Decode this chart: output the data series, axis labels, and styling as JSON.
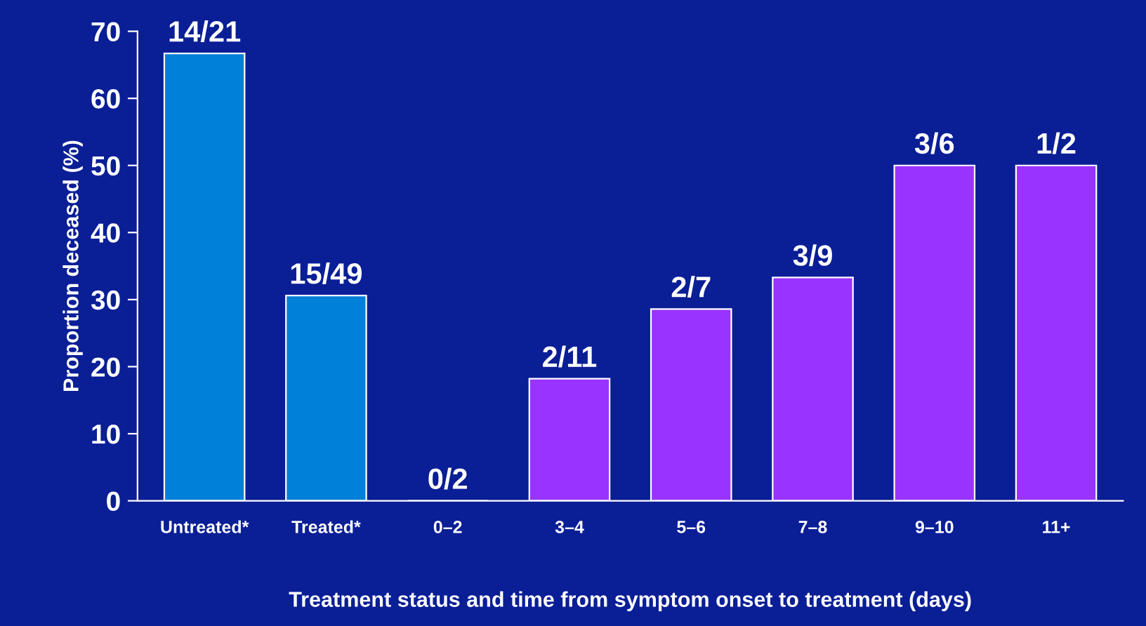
{
  "chart_data": {
    "type": "bar",
    "xlabel": "Treatment status and time from symptom onset to treatment (days)",
    "ylabel": "Proportion deceased (%)",
    "categories": [
      "Untreated*",
      "Treated*",
      "0–2",
      "3–4",
      "5–6",
      "7–8",
      "9–10",
      "11+"
    ],
    "values": [
      66.7,
      30.6,
      0,
      18.2,
      28.6,
      33.3,
      50,
      50
    ],
    "colors": [
      "#0080d8",
      "#0080d8",
      "#9933ff",
      "#9933ff",
      "#9933ff",
      "#9933ff",
      "#9933ff",
      "#9933ff"
    ],
    "annotations": [
      {
        "text": "14/21",
        "x": "Untreated*",
        "y": 66.7
      },
      {
        "text": "15/49",
        "x": "Treated*",
        "y": 30.6
      },
      {
        "text": "0/2",
        "x": "0–2",
        "y": 0
      },
      {
        "text": "2/11",
        "x": "3–4",
        "y": 18.2
      },
      {
        "text": "2/7",
        "x": "5–6",
        "y": 28.6
      },
      {
        "text": "3/9",
        "x": "7–8",
        "y": 33.3
      },
      {
        "text": "3/6",
        "x": "9–10",
        "y": 50
      },
      {
        "text": "1/2",
        "x": "11+",
        "y": 50
      }
    ],
    "ylim": [
      0,
      70
    ],
    "yticks": [
      0,
      10,
      20,
      30,
      40,
      50,
      60,
      70
    ],
    "grid": false
  }
}
